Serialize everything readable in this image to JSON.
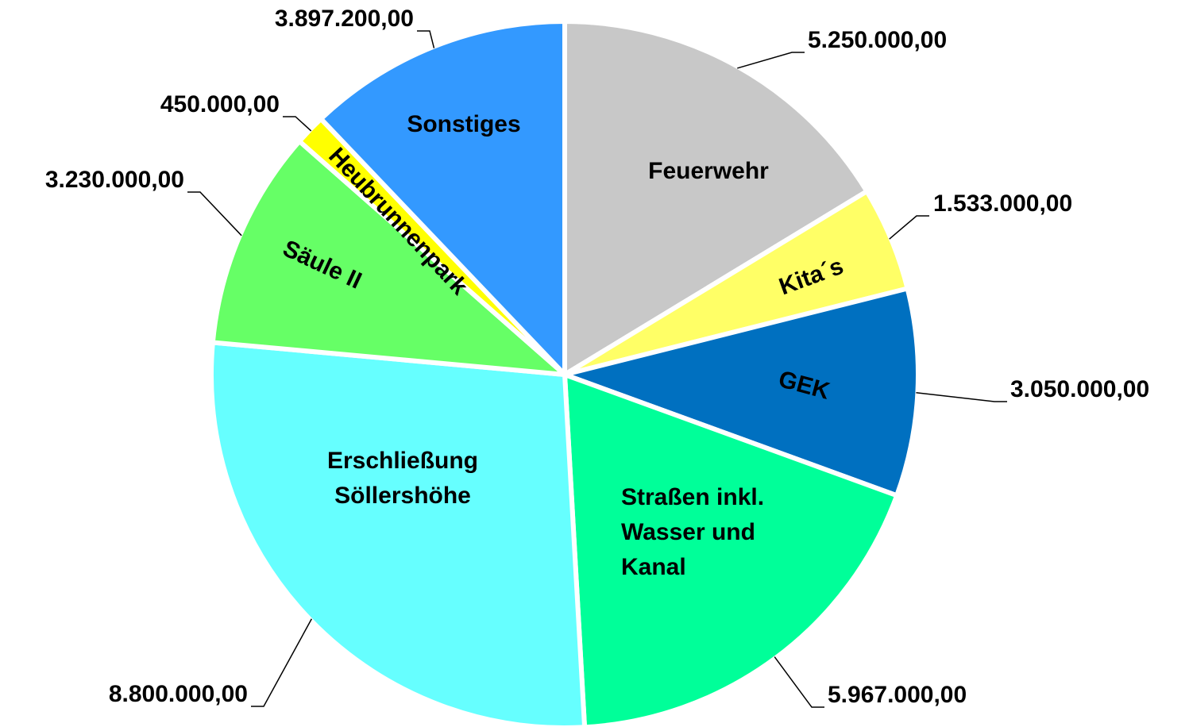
{
  "chart_data": {
    "type": "pie",
    "categories": [
      "Feuerwehr",
      "Kita´s",
      "GEK",
      "Straßen inkl.\nWasser und\nKanal",
      "Erschließung\nSöllershöhe",
      "Säule II",
      "Heubrunnenpark",
      "Sonstiges"
    ],
    "values": [
      5250000,
      1533000,
      3050000,
      5967000,
      8800000,
      3230000,
      450000,
      3897200
    ],
    "value_labels": [
      "5.250.000,00",
      "1.533.000,00",
      "3.050.000,00",
      "5.967.000,00",
      "8.800.000,00",
      "3.230.000,00",
      "450.000,00",
      "3.897.200,00"
    ],
    "colors": [
      "#c8c8c8",
      "#ffff66",
      "#0070c0",
      "#00ff99",
      "#66ffff",
      "#66ff66",
      "#ffff00",
      "#3399ff"
    ]
  }
}
